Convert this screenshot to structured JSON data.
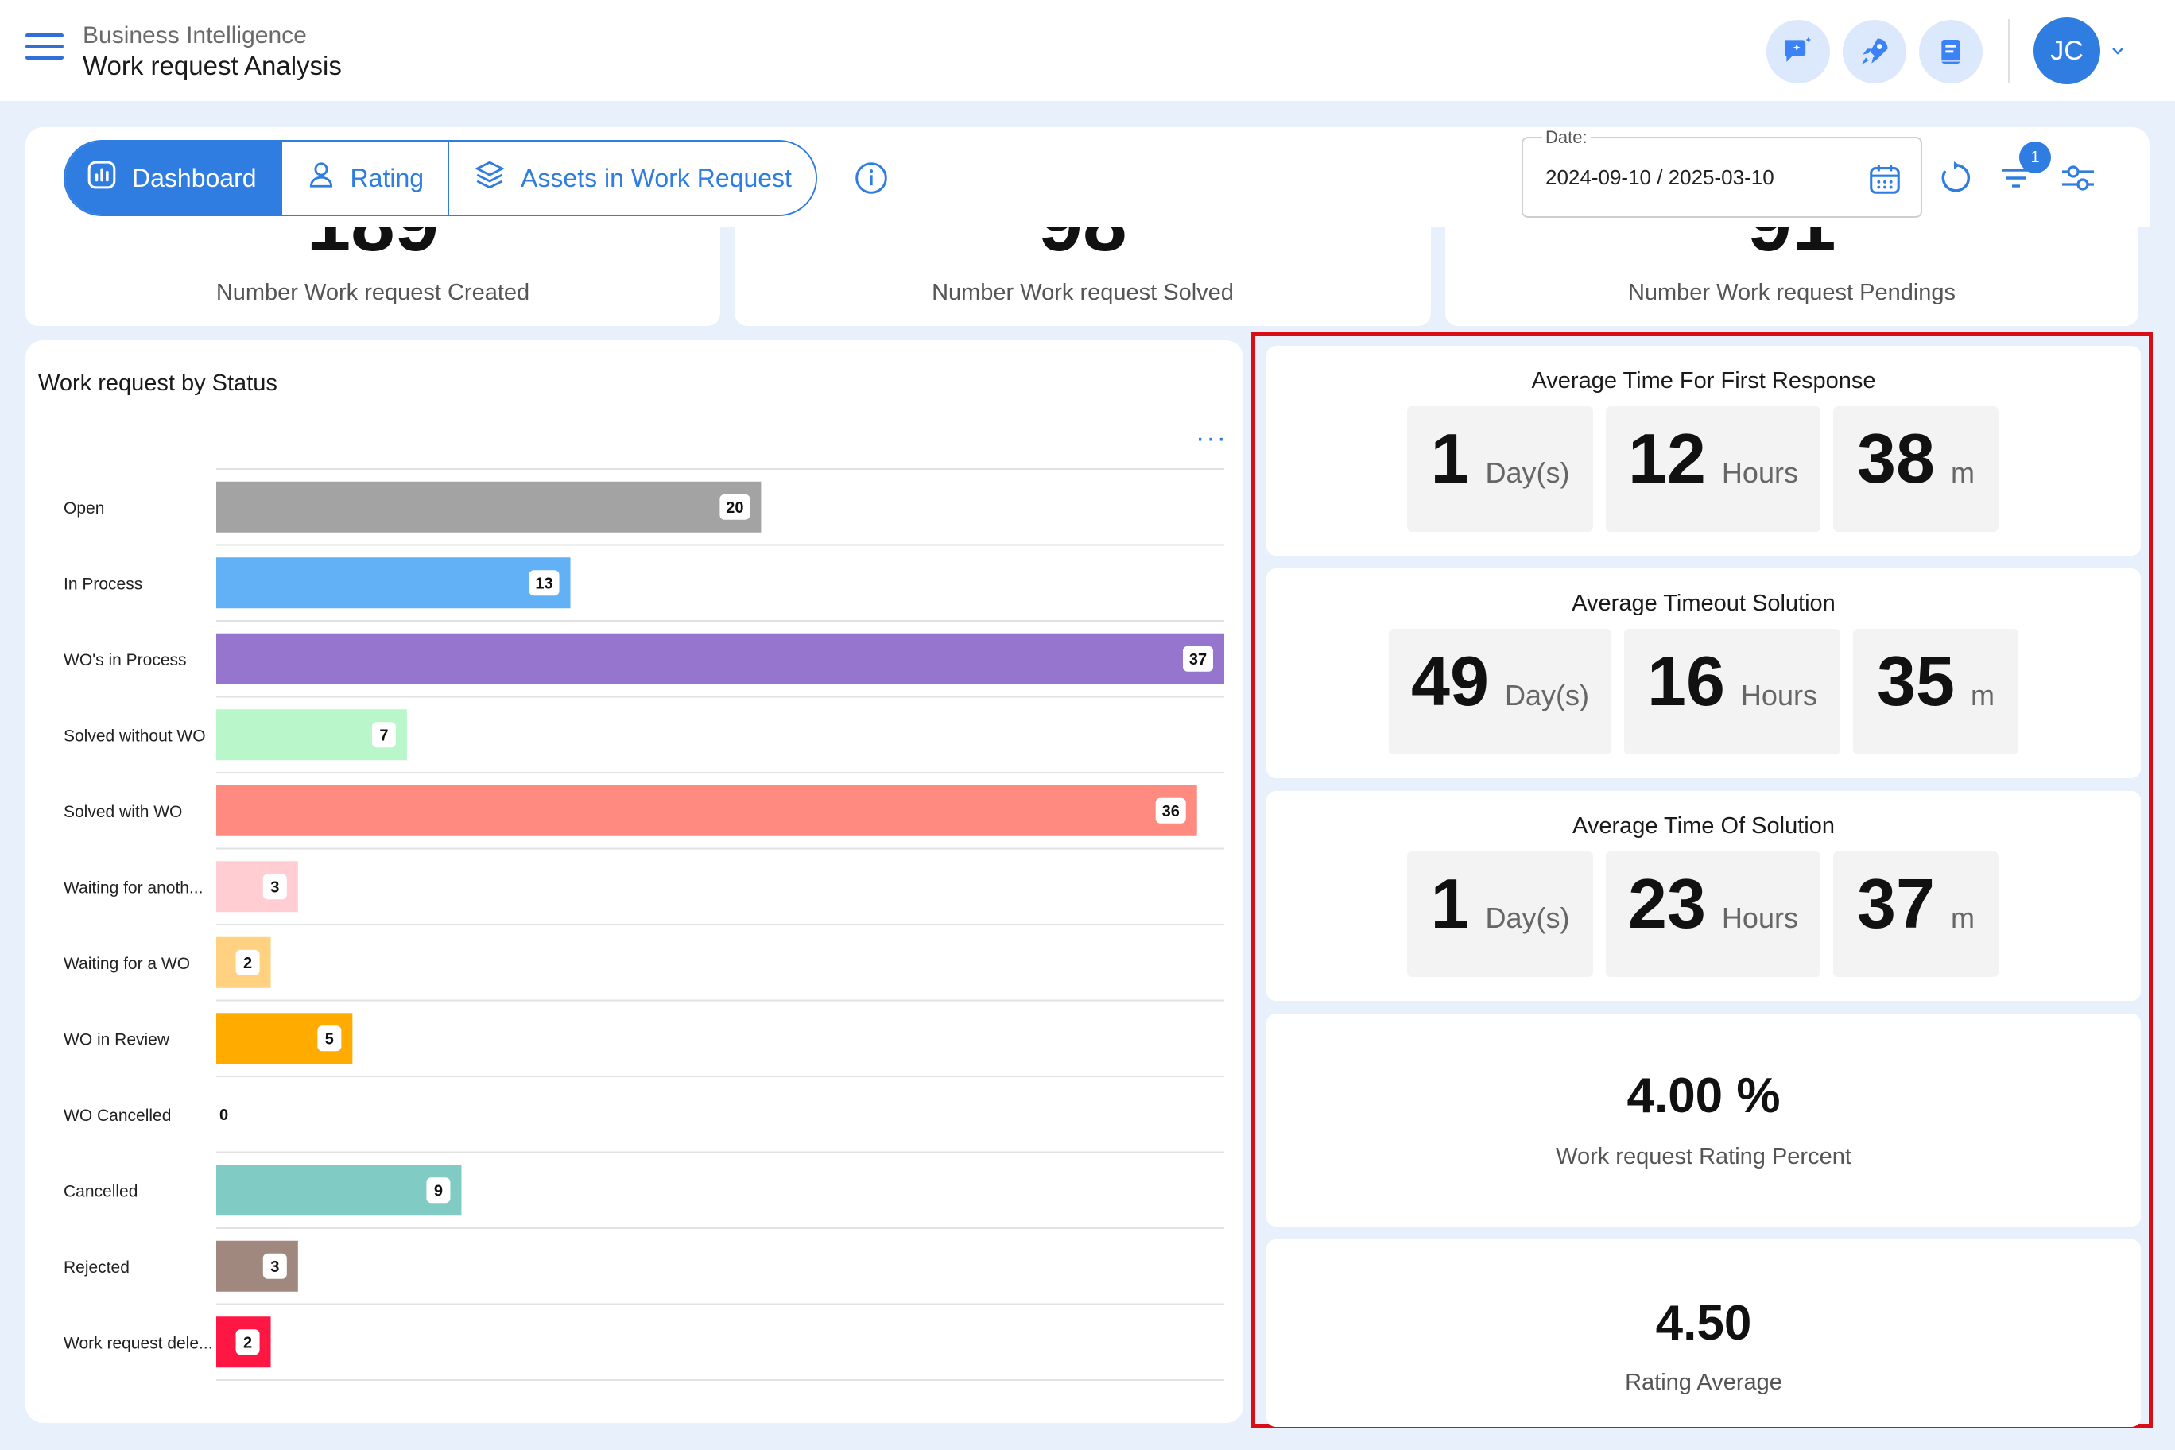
{
  "header": {
    "app_section": "Business Intelligence",
    "page_title": "Work request Analysis",
    "avatar_initials": "JC"
  },
  "tabs": [
    {
      "label": "Dashboard",
      "active": true,
      "icon": "bar-chart-icon"
    },
    {
      "label": "Rating",
      "active": false,
      "icon": "user-icon"
    },
    {
      "label": "Assets in Work Request",
      "active": false,
      "icon": "layers-icon"
    }
  ],
  "date_filter": {
    "label": "Date:",
    "value": "2024-09-10 / 2025-03-10"
  },
  "filter_badge_count": "1",
  "kpis": [
    {
      "label": "Number Work request Created"
    },
    {
      "label": "Number Work request Solved"
    },
    {
      "label": "Number Work request Pendings"
    }
  ],
  "status_chart": {
    "title": "Work request by Status",
    "more_label": "···"
  },
  "chart_data": {
    "type": "bar",
    "orientation": "horizontal",
    "categories": [
      "Open",
      "In Process",
      "WO's in Process",
      "Solved without WO",
      "Solved with WO",
      "Waiting for anoth...",
      "Waiting for a WO",
      "WO in Review",
      "WO Cancelled",
      "Cancelled",
      "Rejected",
      "Work request dele..."
    ],
    "values": [
      20,
      13,
      37,
      7,
      36,
      3,
      2,
      5,
      0,
      9,
      3,
      2
    ],
    "colors": [
      "#a3a3a3",
      "#62b1f6",
      "#9575cd",
      "#b9f6ca",
      "#ff8a80",
      "#ffcdd2",
      "#ffd180",
      "#ffab00",
      "#9e9e9e",
      "#80cbc4",
      "#a1887f",
      "#ff1744"
    ],
    "xlim": [
      0,
      37
    ],
    "grid": true,
    "legend": "none"
  },
  "metrics": {
    "first_response": {
      "title": "Average Time For First Response",
      "days": "1",
      "days_unit": "Day(s)",
      "hours": "12",
      "hours_unit": "Hours",
      "minutes": "38",
      "minutes_unit": "m"
    },
    "timeout_solution": {
      "title": "Average Timeout Solution",
      "days": "49",
      "days_unit": "Day(s)",
      "hours": "16",
      "hours_unit": "Hours",
      "minutes": "35",
      "minutes_unit": "m"
    },
    "time_of_solution": {
      "title": "Average Time Of Solution",
      "days": "1",
      "days_unit": "Day(s)",
      "hours": "23",
      "hours_unit": "Hours",
      "minutes": "37",
      "minutes_unit": "m"
    },
    "rating_percent": {
      "value": "4.00 %",
      "label": "Work request Rating Percent"
    },
    "rating_average": {
      "value": "4.50",
      "label": "Rating Average"
    }
  }
}
